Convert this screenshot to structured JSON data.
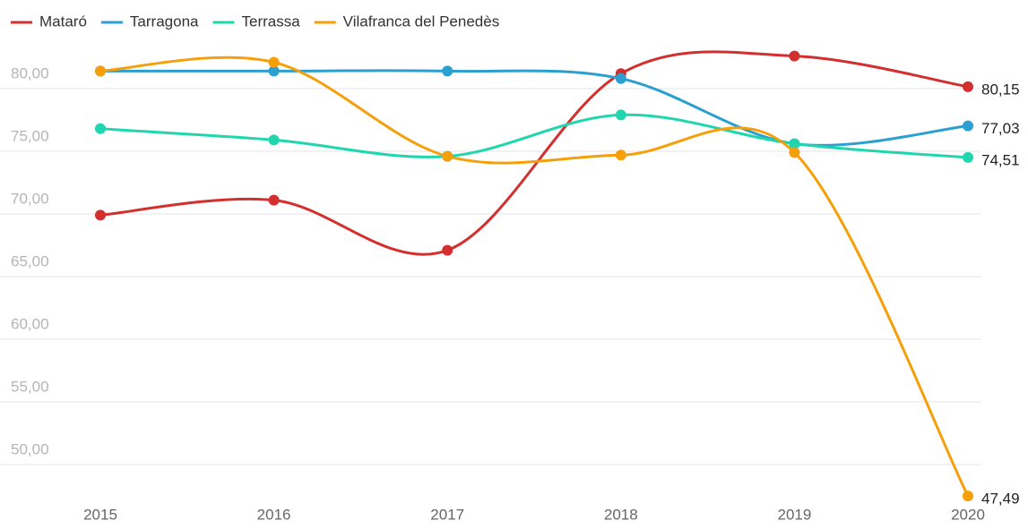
{
  "chart_data": {
    "type": "line",
    "categories": [
      "2015",
      "2016",
      "2017",
      "2018",
      "2019",
      "2020"
    ],
    "series": [
      {
        "name": "Mataró",
        "color": "#d32f2f",
        "values": [
          69.9,
          71.1,
          67.1,
          81.2,
          82.6,
          80.15
        ],
        "value_labels": [
          null,
          null,
          null,
          null,
          null,
          "80,15"
        ]
      },
      {
        "name": "Tarragona",
        "color": "#2b9fcf",
        "values": [
          81.4,
          81.4,
          81.4,
          80.8,
          75.6,
          77.03
        ],
        "value_labels": [
          null,
          null,
          null,
          null,
          null,
          "77,03"
        ]
      },
      {
        "name": "Terrassa",
        "color": "#1fd6ae",
        "values": [
          76.8,
          75.9,
          74.6,
          77.9,
          75.6,
          74.51
        ],
        "value_labels": [
          null,
          null,
          null,
          null,
          null,
          "74,51"
        ]
      },
      {
        "name": "Vilafranca del Penedès",
        "color": "#f59f0a",
        "values": [
          81.4,
          82.1,
          74.6,
          74.7,
          74.9,
          47.49
        ],
        "value_labels": [
          null,
          null,
          null,
          null,
          null,
          "47,49"
        ]
      }
    ],
    "ylim": [
      47,
      83.5
    ],
    "yticks": [
      {
        "value": 50,
        "label": "50,00"
      },
      {
        "value": 55,
        "label": "55,00"
      },
      {
        "value": 60,
        "label": "60,00"
      },
      {
        "value": 65,
        "label": "65,00"
      },
      {
        "value": 70,
        "label": "70,00"
      },
      {
        "value": 75,
        "label": "75,00"
      },
      {
        "value": 80,
        "label": "80,00"
      }
    ],
    "grid": true,
    "legend": "top-left",
    "smooth": true
  }
}
